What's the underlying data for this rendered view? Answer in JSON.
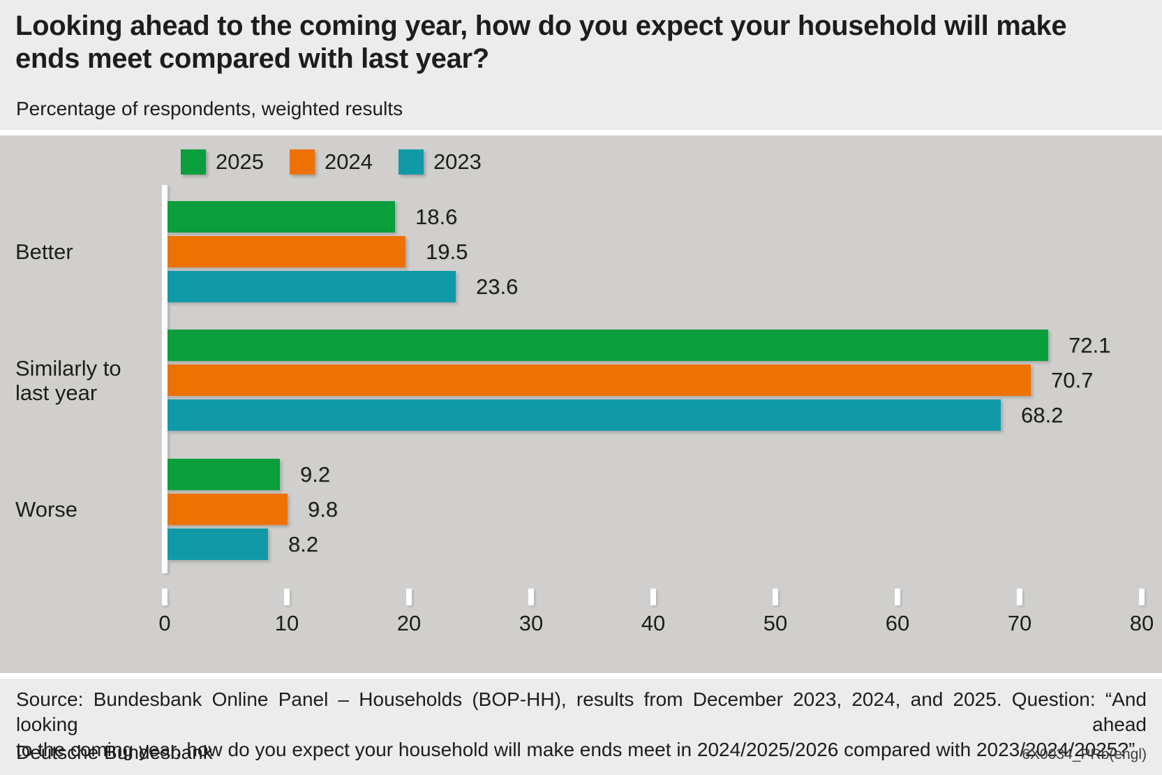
{
  "header": {
    "title": "Looking ahead to the coming year, how do you expect your household will make ends meet compared with last year?",
    "subtitle": "Percentage of respondents, weighted results"
  },
  "chart_data": {
    "type": "bar",
    "orientation": "horizontal",
    "title": "Looking ahead to the coming year, how do you expect your household will make ends meet compared with last year?",
    "subtitle": "Percentage of respondents, weighted results",
    "unit": "Percentage of respondents",
    "categories": [
      {
        "key": "better",
        "label_lines": [
          "Better"
        ]
      },
      {
        "key": "similarly-to-last-year",
        "label_lines": [
          "Similarly to",
          "last year"
        ]
      },
      {
        "key": "worse",
        "label_lines": [
          "Worse"
        ]
      }
    ],
    "series": [
      {
        "name": "2025",
        "color": "#0a9e3c",
        "values": [
          18.6,
          72.1,
          9.2
        ]
      },
      {
        "name": "2024",
        "color": "#ee7203",
        "values": [
          19.5,
          70.7,
          9.8
        ]
      },
      {
        "name": "2023",
        "color": "#109aa8",
        "values": [
          23.6,
          68.2,
          8.2
        ]
      }
    ],
    "xlim": [
      0,
      80
    ],
    "xticks": [
      0,
      10,
      20,
      30,
      40,
      50,
      60,
      70,
      80
    ],
    "grid": false,
    "value_labels": true,
    "legend_position": "top-left"
  },
  "footer": {
    "source_line1": "Source: Bundesbank Online Panel – Households (BOP-HH), results from December 2023, 2024, and 2025. Question: “And looking ahead",
    "source_line2": "to the coming year, how do you expect your household will make ends meet in 2024/2025/2026 compared with 2023/2024/2025?”",
    "publisher": "Deutsche Bundesbank",
    "code": "6X0034_PRb(engl)"
  },
  "colors": {
    "header_bg": "#edecec",
    "chart_bg": "#d0cfcd",
    "footer_bg": "#edecec",
    "axis": "#ffffff",
    "text": "#1d1d1b"
  }
}
